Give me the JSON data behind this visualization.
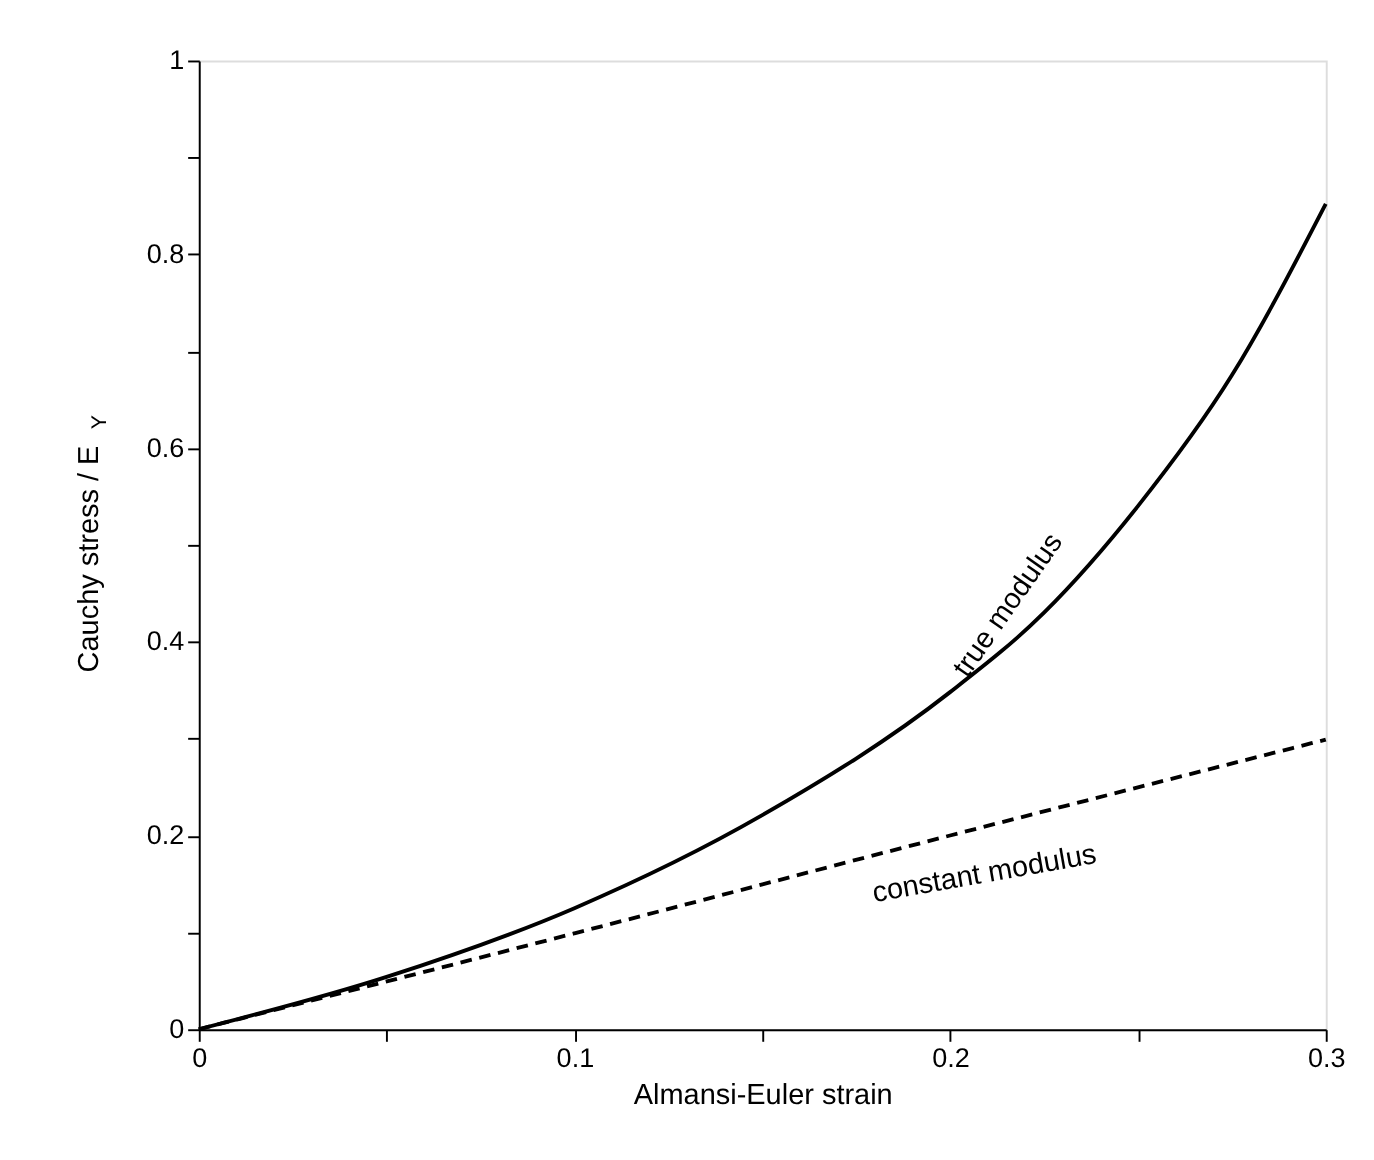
{
  "chart_data": {
    "type": "line",
    "xlabel": "Almansi-Euler strain",
    "ylabel": "Cauchy stress / E$_{Y}$",
    "xlim": [
      0,
      0.3
    ],
    "ylim": [
      0,
      1
    ],
    "xticks": [
      0,
      {
        "value": 0.05,
        "label": null
      },
      0.1,
      {
        "value": 0.15,
        "label": null
      },
      0.2,
      {
        "value": 0.25,
        "label": null
      },
      0.3
    ],
    "yticks": [
      0,
      {
        "value": 0.1,
        "label": null
      },
      0.2,
      {
        "value": 0.3,
        "label": null
      },
      0.4,
      {
        "value": 0.5,
        "label": null
      },
      0.6,
      {
        "value": 0.7,
        "label": null
      },
      0.8,
      {
        "value": 0.9,
        "label": null
      },
      1
    ],
    "grid": false,
    "series": [
      {
        "color": "#000000",
        "line_style": "solid",
        "x": [
          0,
          0.05,
          0.1,
          0.15,
          0.2,
          0.225,
          0.25,
          0.275,
          0.3
        ],
        "values": [
          0,
          0.054,
          0.125,
          0.221,
          0.348,
          0.43,
          0.54,
          0.675,
          0.852
        ]
      },
      {
        "color": "#000000",
        "line_style": "dashed",
        "x": [
          0,
          0.1,
          0.2,
          0.3
        ],
        "values": [
          0,
          0.099,
          0.2,
          0.299
        ]
      }
    ],
    "annotations": [
      "true modulus",
      "constant modulus"
    ]
  }
}
